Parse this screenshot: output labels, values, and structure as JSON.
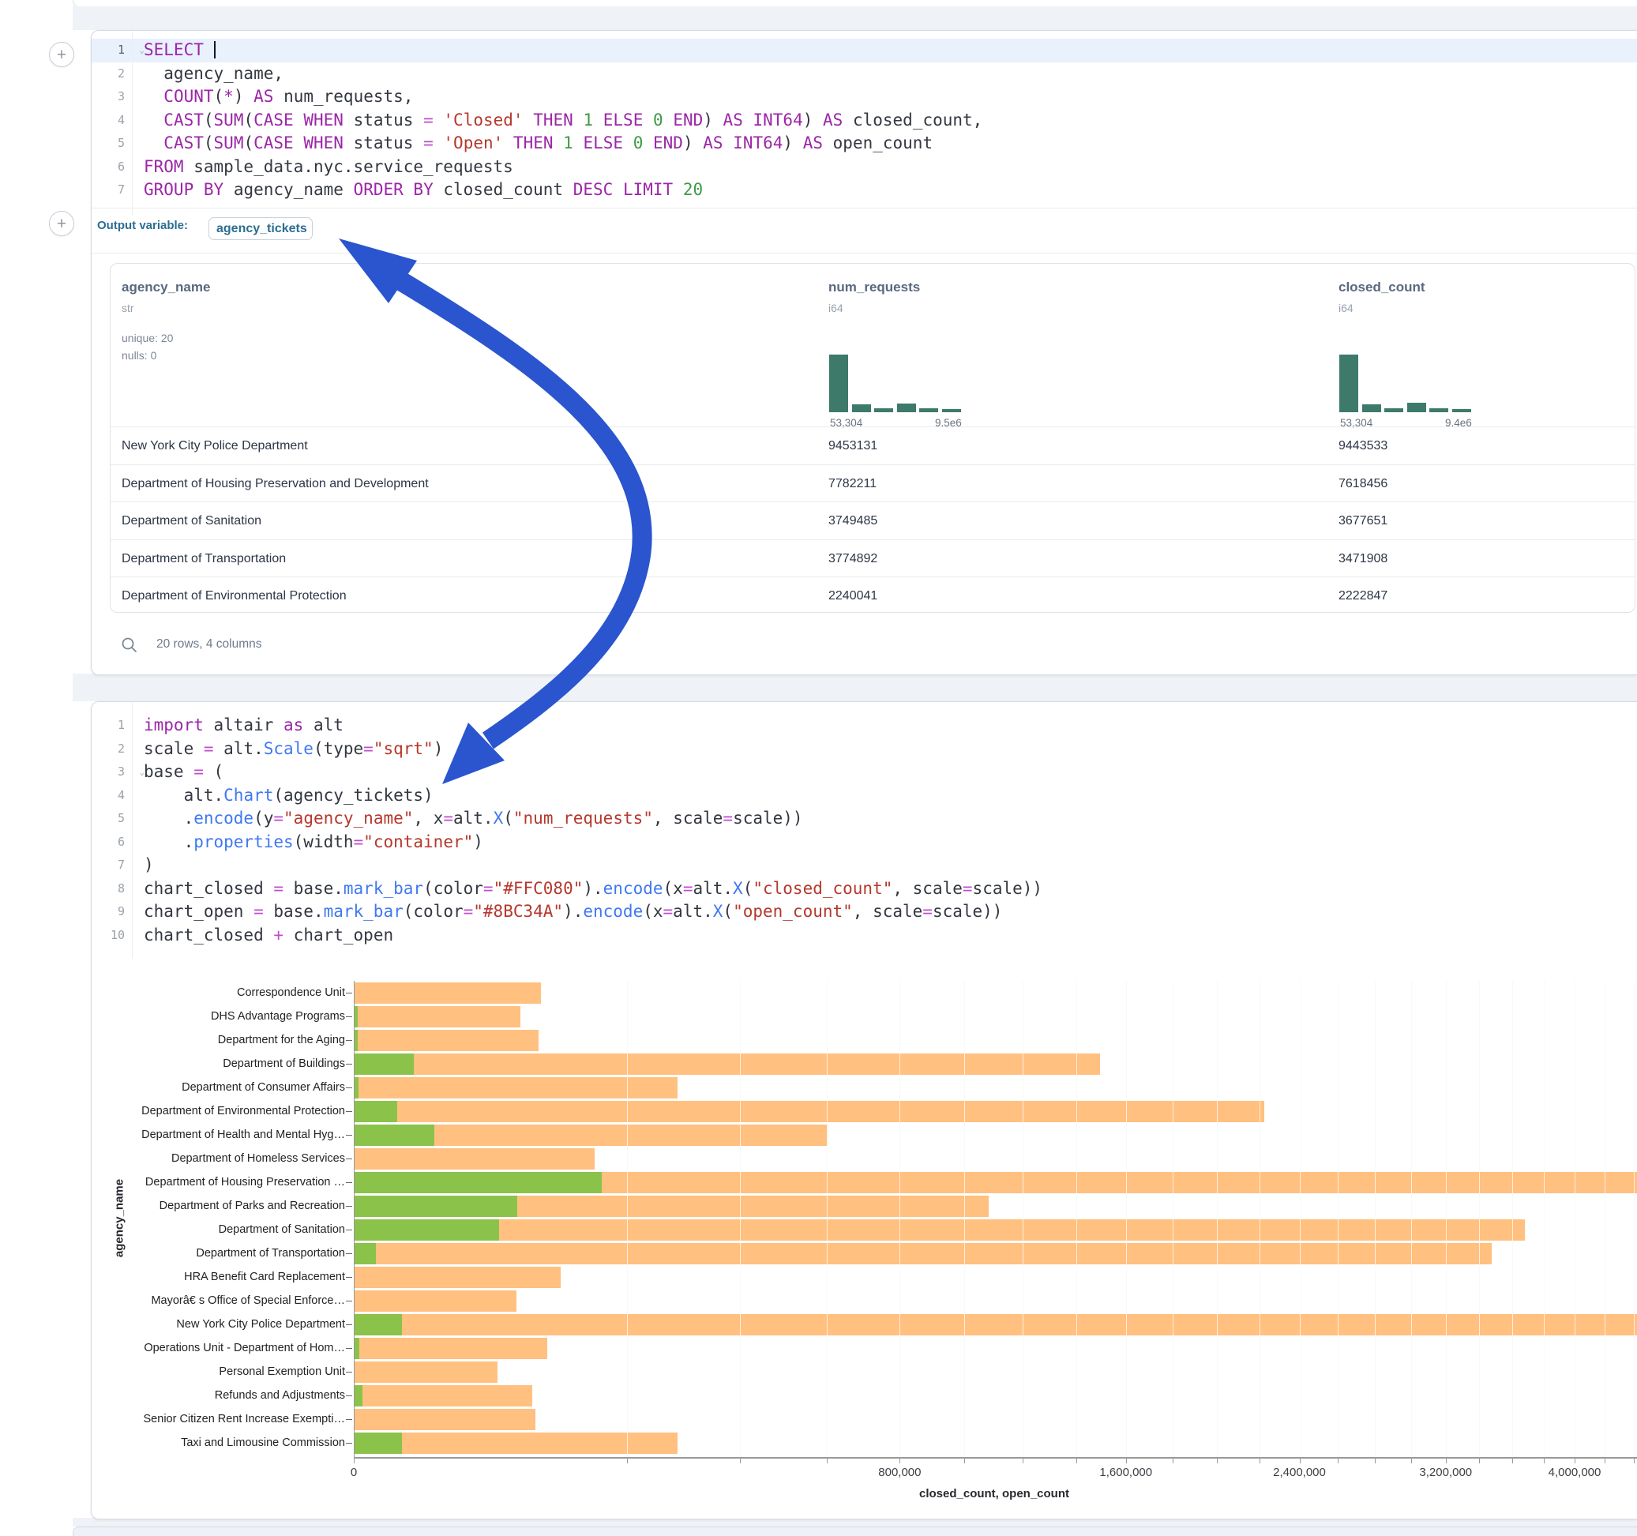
{
  "notebook": {
    "output_variable_label": "Output variable:",
    "output_variable_value": "agency_tickets",
    "table_footer": "20 rows, 4 columns",
    "add_cell_icon": "+"
  },
  "sql_cell": {
    "lines": [
      {
        "n": "1",
        "chevron": true,
        "active": true,
        "tokens": [
          [
            "kw",
            "SELECT"
          ],
          [
            "pl",
            " "
          ],
          [
            "cursor",
            ""
          ]
        ]
      },
      {
        "n": "2",
        "tokens": [
          [
            "pl",
            "  agency_name,"
          ]
        ]
      },
      {
        "n": "3",
        "tokens": [
          [
            "pl",
            "  "
          ],
          [
            "kw",
            "COUNT"
          ],
          [
            "pl",
            "("
          ],
          [
            "kw",
            "*"
          ],
          [
            "pl",
            ") "
          ],
          [
            "kw",
            "AS"
          ],
          [
            "pl",
            " num_requests,"
          ]
        ]
      },
      {
        "n": "4",
        "tokens": [
          [
            "pl",
            "  "
          ],
          [
            "kw",
            "CAST"
          ],
          [
            "pl",
            "("
          ],
          [
            "kw",
            "SUM"
          ],
          [
            "pl",
            "("
          ],
          [
            "kw",
            "CASE"
          ],
          [
            "pl",
            " "
          ],
          [
            "kw",
            "WHEN"
          ],
          [
            "pl",
            " status "
          ],
          [
            "op",
            "="
          ],
          [
            "pl",
            " "
          ],
          [
            "str",
            "'Closed'"
          ],
          [
            "pl",
            " "
          ],
          [
            "kw",
            "THEN"
          ],
          [
            "pl",
            " "
          ],
          [
            "num",
            "1"
          ],
          [
            "pl",
            " "
          ],
          [
            "kw",
            "ELSE"
          ],
          [
            "pl",
            " "
          ],
          [
            "num",
            "0"
          ],
          [
            "pl",
            " "
          ],
          [
            "kw",
            "END"
          ],
          [
            "pl",
            ") "
          ],
          [
            "kw",
            "AS"
          ],
          [
            "pl",
            " "
          ],
          [
            "kw",
            "INT64"
          ],
          [
            "pl",
            ") "
          ],
          [
            "kw",
            "AS"
          ],
          [
            "pl",
            " closed_count,"
          ]
        ]
      },
      {
        "n": "5",
        "tokens": [
          [
            "pl",
            "  "
          ],
          [
            "kw",
            "CAST"
          ],
          [
            "pl",
            "("
          ],
          [
            "kw",
            "SUM"
          ],
          [
            "pl",
            "("
          ],
          [
            "kw",
            "CASE"
          ],
          [
            "pl",
            " "
          ],
          [
            "kw",
            "WHEN"
          ],
          [
            "pl",
            " status "
          ],
          [
            "op",
            "="
          ],
          [
            "pl",
            " "
          ],
          [
            "str",
            "'Open'"
          ],
          [
            "pl",
            " "
          ],
          [
            "kw",
            "THEN"
          ],
          [
            "pl",
            " "
          ],
          [
            "num",
            "1"
          ],
          [
            "pl",
            " "
          ],
          [
            "kw",
            "ELSE"
          ],
          [
            "pl",
            " "
          ],
          [
            "num",
            "0"
          ],
          [
            "pl",
            " "
          ],
          [
            "kw",
            "END"
          ],
          [
            "pl",
            ") "
          ],
          [
            "kw",
            "AS"
          ],
          [
            "pl",
            " "
          ],
          [
            "kw",
            "INT64"
          ],
          [
            "pl",
            ") "
          ],
          [
            "kw",
            "AS"
          ],
          [
            "pl",
            " open_count"
          ]
        ]
      },
      {
        "n": "6",
        "tokens": [
          [
            "kw",
            "FROM"
          ],
          [
            "pl",
            " sample_data.nyc.service_requests"
          ]
        ]
      },
      {
        "n": "7",
        "tokens": [
          [
            "kw",
            "GROUP"
          ],
          [
            "pl",
            " "
          ],
          [
            "kw",
            "BY"
          ],
          [
            "pl",
            " agency_name "
          ],
          [
            "kw",
            "ORDER"
          ],
          [
            "pl",
            " "
          ],
          [
            "kw",
            "BY"
          ],
          [
            "pl",
            " closed_count "
          ],
          [
            "kw",
            "DESC"
          ],
          [
            "pl",
            " "
          ],
          [
            "kw",
            "LIMIT"
          ],
          [
            "pl",
            " "
          ],
          [
            "num",
            "20"
          ]
        ]
      }
    ]
  },
  "python_cell": {
    "lines": [
      {
        "n": "1",
        "tokens": [
          [
            "kw",
            "import"
          ],
          [
            "pl",
            " altair "
          ],
          [
            "kw",
            "as"
          ],
          [
            "pl",
            " alt"
          ]
        ]
      },
      {
        "n": "2",
        "tokens": [
          [
            "pl",
            "scale "
          ],
          [
            "op",
            "="
          ],
          [
            "pl",
            " alt."
          ],
          [
            "fn",
            "Scale"
          ],
          [
            "pl",
            "(type"
          ],
          [
            "op",
            "="
          ],
          [
            "str",
            "\"sqrt\""
          ],
          [
            "pl",
            ")"
          ]
        ]
      },
      {
        "n": "3",
        "chevron": true,
        "tokens": [
          [
            "pl",
            "base "
          ],
          [
            "op",
            "="
          ],
          [
            "pl",
            " ("
          ]
        ]
      },
      {
        "n": "4",
        "tokens": [
          [
            "pl",
            "    alt."
          ],
          [
            "fn",
            "Chart"
          ],
          [
            "pl",
            "(agency_tickets)"
          ]
        ]
      },
      {
        "n": "5",
        "tokens": [
          [
            "pl",
            "    ."
          ],
          [
            "fn",
            "encode"
          ],
          [
            "pl",
            "(y"
          ],
          [
            "op",
            "="
          ],
          [
            "str",
            "\"agency_name\""
          ],
          [
            "pl",
            ", x"
          ],
          [
            "op",
            "="
          ],
          [
            "pl",
            "alt."
          ],
          [
            "fn",
            "X"
          ],
          [
            "pl",
            "("
          ],
          [
            "str",
            "\"num_requests\""
          ],
          [
            "pl",
            ", scale"
          ],
          [
            "op",
            "="
          ],
          [
            "pl",
            "scale))"
          ]
        ]
      },
      {
        "n": "6",
        "tokens": [
          [
            "pl",
            "    ."
          ],
          [
            "fn",
            "properties"
          ],
          [
            "pl",
            "(width"
          ],
          [
            "op",
            "="
          ],
          [
            "str",
            "\"container\""
          ],
          [
            "pl",
            ")"
          ]
        ]
      },
      {
        "n": "7",
        "tokens": [
          [
            "pl",
            ")"
          ]
        ]
      },
      {
        "n": "8",
        "tokens": [
          [
            "pl",
            "chart_closed "
          ],
          [
            "op",
            "="
          ],
          [
            "pl",
            " base."
          ],
          [
            "fn",
            "mark_bar"
          ],
          [
            "pl",
            "(color"
          ],
          [
            "op",
            "="
          ],
          [
            "str",
            "\"#FFC080\""
          ],
          [
            "pl",
            ")."
          ],
          [
            "fn",
            "encode"
          ],
          [
            "pl",
            "(x"
          ],
          [
            "op",
            "="
          ],
          [
            "pl",
            "alt."
          ],
          [
            "fn",
            "X"
          ],
          [
            "pl",
            "("
          ],
          [
            "str",
            "\"closed_count\""
          ],
          [
            "pl",
            ", scale"
          ],
          [
            "op",
            "="
          ],
          [
            "pl",
            "scale))"
          ]
        ]
      },
      {
        "n": "9",
        "tokens": [
          [
            "pl",
            "chart_open "
          ],
          [
            "op",
            "="
          ],
          [
            "pl",
            " base."
          ],
          [
            "fn",
            "mark_bar"
          ],
          [
            "pl",
            "(color"
          ],
          [
            "op",
            "="
          ],
          [
            "str",
            "\"#8BC34A\""
          ],
          [
            "pl",
            ")."
          ],
          [
            "fn",
            "encode"
          ],
          [
            "pl",
            "(x"
          ],
          [
            "op",
            "="
          ],
          [
            "pl",
            "alt."
          ],
          [
            "fn",
            "X"
          ],
          [
            "pl",
            "("
          ],
          [
            "str",
            "\"open_count\""
          ],
          [
            "pl",
            ", scale"
          ],
          [
            "op",
            "="
          ],
          [
            "pl",
            "scale))"
          ]
        ]
      },
      {
        "n": "10",
        "tokens": [
          [
            "pl",
            "chart_closed "
          ],
          [
            "op",
            "+"
          ],
          [
            "pl",
            " chart_open"
          ]
        ]
      }
    ]
  },
  "table": {
    "columns": [
      {
        "name": "agency_name",
        "type": "str",
        "stats": [
          "unique: 20",
          "nulls: 0"
        ]
      },
      {
        "name": "num_requests",
        "type": "i64",
        "hist": {
          "bars": [
            75,
            12,
            7,
            13,
            7,
            6
          ],
          "min_label": "53,304",
          "max_label": "9.5e6"
        }
      },
      {
        "name": "closed_count",
        "type": "i64",
        "hist": {
          "bars": [
            75,
            12,
            7,
            14,
            7,
            6
          ],
          "min_label": "53,304",
          "max_label": "9.4e6"
        }
      }
    ],
    "rows": [
      {
        "agency_name": "New York City Police Department",
        "num_requests": "9453131",
        "closed_count": "9443533"
      },
      {
        "agency_name": "Department of Housing Preservation and Development",
        "num_requests": "7782211",
        "closed_count": "7618456"
      },
      {
        "agency_name": "Department of Sanitation",
        "num_requests": "3749485",
        "closed_count": "3677651"
      },
      {
        "agency_name": "Department of Transportation",
        "num_requests": "3774892",
        "closed_count": "3471908"
      },
      {
        "agency_name": "Department of Environmental Protection",
        "num_requests": "2240041",
        "closed_count": "2222847"
      }
    ]
  },
  "chart_data": {
    "type": "bar",
    "orientation": "horizontal",
    "x_scale": "sqrt",
    "xlabel": "closed_count, open_count",
    "ylabel": "agency_name",
    "x_tick_values": [
      0,
      800000,
      1600000,
      2400000,
      3200000,
      4000000
    ],
    "x_tick_labels": [
      "0",
      "800,000",
      "1,600,000",
      "2,400,000",
      "3,200,000",
      "4,000,000"
    ],
    "gridline_step": 200000,
    "grid": true,
    "legend": "none",
    "categories": [
      "Correspondence Unit",
      "DHS Advantage Programs",
      "Department for the Aging",
      "Department of Buildings",
      "Department of Consumer Affairs",
      "Department of Environmental Protection",
      "Department of Health and Mental Hyg…",
      "Department of Homeless Services",
      "Department of Housing Preservation …",
      "Department of Parks and Recreation",
      "Department of Sanitation",
      "Department of Transportation",
      "HRA Benefit Card Replacement",
      "Mayorâ€ s Office of Special Enforce…",
      "New York City Police Department",
      "Operations Unit - Department of Hom…",
      "Personal Exemption Unit",
      "Refunds and Adjustments",
      "Senior Citizen Rent Increase Exempti…",
      "Taxi and Limousine Commission"
    ],
    "series": [
      {
        "name": "closed_count",
        "color": "#FFC080",
        "values": [
          93000,
          74000,
          91000,
          1490000,
          280000,
          2222847,
          600000,
          155000,
          7618456,
          1080000,
          3677651,
          3471908,
          114000,
          70000,
          9443533,
          100000,
          55000,
          85000,
          88000,
          280000
        ]
      },
      {
        "name": "open_count",
        "color": "#8BC34A",
        "values": [
          0,
          30,
          30,
          9500,
          40,
          4800,
          17000,
          0,
          163755,
          71000,
          56000,
          1200,
          0,
          0,
          6000,
          60,
          0,
          170,
          0,
          6000
        ]
      }
    ]
  },
  "colors": {
    "closed_bar": "#FFC080",
    "open_bar": "#8BC34A",
    "hist_bar": "#3d7a6a",
    "arrow": "#2a55cf",
    "keyword": "#9c26a8",
    "string": "#b5382d",
    "number": "#3f9a44",
    "function": "#4078f2",
    "operator": "#c04ccf"
  }
}
